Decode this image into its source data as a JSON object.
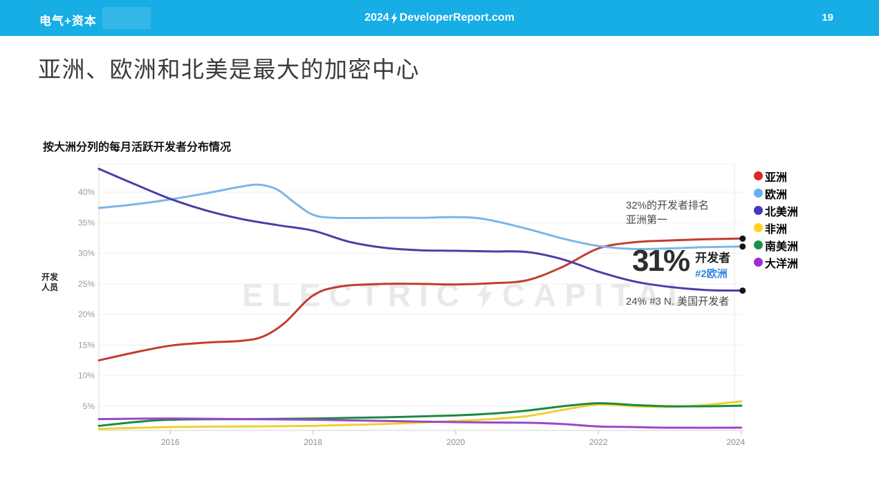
{
  "header": {
    "logo": "电气+资本",
    "center_prefix": "2024",
    "center_site": "DeveloperReport.com",
    "page_number": "19",
    "bg_color": "#17ADE5"
  },
  "title": "亚洲、欧洲和北美是最大的加密中心",
  "chart": {
    "subtitle": "按大洲分列的每月活跃开发者分布情况",
    "y_axis_label": "开发人员",
    "watermark": {
      "left": "ELECTRIC",
      "right": "CAPITAL"
    },
    "annotations": {
      "asia": "32%的开发者排名亚洲第一",
      "europe_pct": "31%",
      "europe_label": "开发者",
      "europe_rank": "#2欧洲",
      "n_america": "24% #3 N. 美国开发者"
    }
  },
  "legend": [
    {
      "label": "亚洲",
      "color": "#E02525"
    },
    {
      "label": "欧洲",
      "color": "#5FB1F2"
    },
    {
      "label": "北美洲",
      "color": "#4536BE"
    },
    {
      "label": "非洲",
      "color": "#FFD319"
    },
    {
      "label": "南美洲",
      "color": "#169445"
    },
    {
      "label": "大洋洲",
      "color": "#9C2FD9"
    }
  ],
  "chart_data": {
    "type": "line",
    "title": "按大洲分列的每月活跃开发者分布情况",
    "xlabel": "",
    "ylabel": "开发人员",
    "unit": "%",
    "xlim": [
      2015,
      2024
    ],
    "ylim": [
      0,
      44.6
    ],
    "grid": true,
    "legend_position": "right",
    "x_ticks": [
      2016,
      2018,
      2020,
      2022,
      2024
    ],
    "y_ticks_percent": [
      5,
      10,
      15,
      20,
      25,
      30,
      35,
      40
    ],
    "series": [
      {
        "name": "亚洲",
        "color": "#C13C30",
        "points": [
          [
            2015,
            12.5
          ],
          [
            2015.5,
            13.8
          ],
          [
            2016,
            14.9
          ],
          [
            2016.5,
            15.4
          ],
          [
            2017,
            15.7
          ],
          [
            2017.3,
            16.4
          ],
          [
            2017.6,
            18.6
          ],
          [
            2018,
            23.1
          ],
          [
            2018.4,
            24.6
          ],
          [
            2019,
            25.0
          ],
          [
            2019.5,
            25.0
          ],
          [
            2020,
            24.9
          ],
          [
            2020.5,
            25.1
          ],
          [
            2021,
            25.6
          ],
          [
            2021.5,
            27.8
          ],
          [
            2022,
            30.8
          ],
          [
            2022.5,
            31.8
          ],
          [
            2023,
            32.1
          ],
          [
            2023.5,
            32.3
          ],
          [
            2024,
            32.4
          ]
        ]
      },
      {
        "name": "欧洲",
        "color": "#7CB5E8",
        "points": [
          [
            2015,
            37.4
          ],
          [
            2015.5,
            38.0
          ],
          [
            2016,
            38.8
          ],
          [
            2016.5,
            39.8
          ],
          [
            2017,
            40.9
          ],
          [
            2017.25,
            41.2
          ],
          [
            2017.5,
            40.4
          ],
          [
            2017.75,
            38.2
          ],
          [
            2018,
            36.3
          ],
          [
            2018.3,
            35.8
          ],
          [
            2019,
            35.8
          ],
          [
            2019.5,
            35.8
          ],
          [
            2020,
            35.9
          ],
          [
            2020.4,
            35.6
          ],
          [
            2021,
            34.0
          ],
          [
            2021.5,
            32.4
          ],
          [
            2022,
            31.2
          ],
          [
            2022.5,
            30.7
          ],
          [
            2023,
            30.8
          ],
          [
            2023.5,
            31.0
          ],
          [
            2024,
            31.1
          ]
        ]
      },
      {
        "name": "北美洲",
        "color": "#4B3EA9",
        "points": [
          [
            2015,
            43.8
          ],
          [
            2015.5,
            41.3
          ],
          [
            2016,
            38.9
          ],
          [
            2016.5,
            37.0
          ],
          [
            2017,
            35.6
          ],
          [
            2017.5,
            34.6
          ],
          [
            2018,
            33.7
          ],
          [
            2018.5,
            31.9
          ],
          [
            2019,
            30.9
          ],
          [
            2019.5,
            30.5
          ],
          [
            2020,
            30.4
          ],
          [
            2020.5,
            30.3
          ],
          [
            2021,
            30.2
          ],
          [
            2021.5,
            29.0
          ],
          [
            2022,
            27.0
          ],
          [
            2022.5,
            25.4
          ],
          [
            2023,
            24.5
          ],
          [
            2023.5,
            24.0
          ],
          [
            2024,
            23.9
          ]
        ]
      },
      {
        "name": "非洲",
        "color": "#EDD02E",
        "points": [
          [
            2015,
            1.3
          ],
          [
            2016,
            1.6
          ],
          [
            2017,
            1.7
          ],
          [
            2018,
            1.8
          ],
          [
            2019,
            2.1
          ],
          [
            2020,
            2.6
          ],
          [
            2020.5,
            2.9
          ],
          [
            2021,
            3.4
          ],
          [
            2021.5,
            4.4
          ],
          [
            2022,
            5.3
          ],
          [
            2022.5,
            5.0
          ],
          [
            2023,
            4.9
          ],
          [
            2023.5,
            5.2
          ],
          [
            2024,
            5.8
          ]
        ]
      },
      {
        "name": "南美洲",
        "color": "#188B41",
        "points": [
          [
            2015,
            1.8
          ],
          [
            2015.5,
            2.4
          ],
          [
            2016,
            2.8
          ],
          [
            2017,
            2.9
          ],
          [
            2018,
            3.0
          ],
          [
            2019,
            3.2
          ],
          [
            2020,
            3.5
          ],
          [
            2020.5,
            3.8
          ],
          [
            2021,
            4.3
          ],
          [
            2021.5,
            5.0
          ],
          [
            2022,
            5.5
          ],
          [
            2022.5,
            5.2
          ],
          [
            2023,
            5.0
          ],
          [
            2023.5,
            5.0
          ],
          [
            2024,
            5.1
          ]
        ]
      },
      {
        "name": "大洋洲",
        "color": "#9B46C6",
        "points": [
          [
            2015,
            2.9
          ],
          [
            2016,
            3.0
          ],
          [
            2017,
            2.9
          ],
          [
            2018,
            2.8
          ],
          [
            2019,
            2.6
          ],
          [
            2020,
            2.4
          ],
          [
            2021,
            2.3
          ],
          [
            2021.5,
            2.1
          ],
          [
            2022,
            1.7
          ],
          [
            2022.5,
            1.6
          ],
          [
            2023,
            1.5
          ],
          [
            2024,
            1.5
          ]
        ]
      }
    ],
    "end_dots": [
      {
        "x": 2024,
        "y": 32.4,
        "series": "亚洲"
      },
      {
        "x": 2024,
        "y": 31.1,
        "series": "欧洲"
      },
      {
        "x": 2024,
        "y": 23.9,
        "series": "北美洲"
      }
    ],
    "annotations": [
      {
        "text": "32%的开发者排名亚洲第一",
        "series": "亚洲"
      },
      {
        "text": "31% 开发者 #2欧洲",
        "series": "欧洲"
      },
      {
        "text": "24% #3 N. 美国开发者",
        "series": "北美洲"
      }
    ]
  }
}
